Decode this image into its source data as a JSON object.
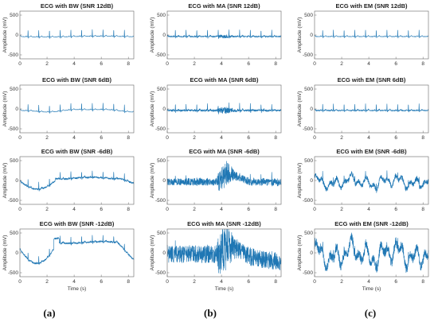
{
  "chart_data": {
    "type": "line",
    "line_color": "#1f77b4",
    "axis_color": "#666666",
    "xlim": [
      0,
      8.4
    ],
    "xticks": [
      0,
      2,
      4,
      6,
      8
    ],
    "xlabel": "Time (s)",
    "ylabel": "Amplitude (mV)",
    "panels": [
      {
        "title": "ECG with BW (SNR 12dB)",
        "noise": "BW",
        "snr_db": 12,
        "ylim": [
          -600,
          600
        ],
        "yticks": [
          -500,
          0,
          500
        ]
      },
      {
        "title": "ECG with MA (SNR 12dB)",
        "noise": "MA",
        "snr_db": 12,
        "ylim": [
          -600,
          600
        ],
        "yticks": [
          -500,
          0,
          500
        ]
      },
      {
        "title": "ECG with EM (SNR 12dB)",
        "noise": "EM",
        "snr_db": 12,
        "ylim": [
          -600,
          600
        ],
        "yticks": [
          -500,
          0,
          500
        ]
      },
      {
        "title": "ECG with BW (SNR 6dB)",
        "noise": "BW",
        "snr_db": 6,
        "ylim": [
          -600,
          600
        ],
        "yticks": [
          -500,
          0,
          500
        ]
      },
      {
        "title": "ECG with MA (SNR 6dB)",
        "noise": "MA",
        "snr_db": 6,
        "ylim": [
          -600,
          600
        ],
        "yticks": [
          -500,
          0,
          500
        ]
      },
      {
        "title": "ECG with EM (SNR 6dB)",
        "noise": "EM",
        "snr_db": 6,
        "ylim": [
          -600,
          600
        ],
        "yticks": [
          -500,
          0,
          500
        ]
      },
      {
        "title": "ECG with BW (SNR -6dB)",
        "noise": "BW",
        "snr_db": -6,
        "ylim": [
          -600,
          600
        ],
        "yticks": [
          -500,
          0,
          500
        ]
      },
      {
        "title": "ECG with MA (SNR -6dB)",
        "noise": "MA",
        "snr_db": -6,
        "ylim": [
          -600,
          600
        ],
        "yticks": [
          -500,
          0,
          500
        ]
      },
      {
        "title": "ECG with EM (SNR -6dB)",
        "noise": "EM",
        "snr_db": -6,
        "ylim": [
          -600,
          600
        ],
        "yticks": [
          -500,
          0,
          500
        ]
      },
      {
        "title": "ECG with BW (SNR -12dB)",
        "noise": "BW",
        "snr_db": -12,
        "ylim": [
          -600,
          600
        ],
        "yticks": [
          -500,
          0,
          500
        ]
      },
      {
        "title": "ECG with MA (SNR -12dB)",
        "noise": "MA",
        "snr_db": -12,
        "ylim": [
          -600,
          600
        ],
        "yticks": [
          -500,
          0,
          500
        ]
      },
      {
        "title": "ECG with EM (SNR -12dB)",
        "noise": "EM",
        "snr_db": -12,
        "ylim": [
          -600,
          600
        ],
        "yticks": [
          -500,
          0,
          500
        ]
      }
    ]
  },
  "captions": [
    "(a)",
    "(b)",
    "(c)"
  ]
}
